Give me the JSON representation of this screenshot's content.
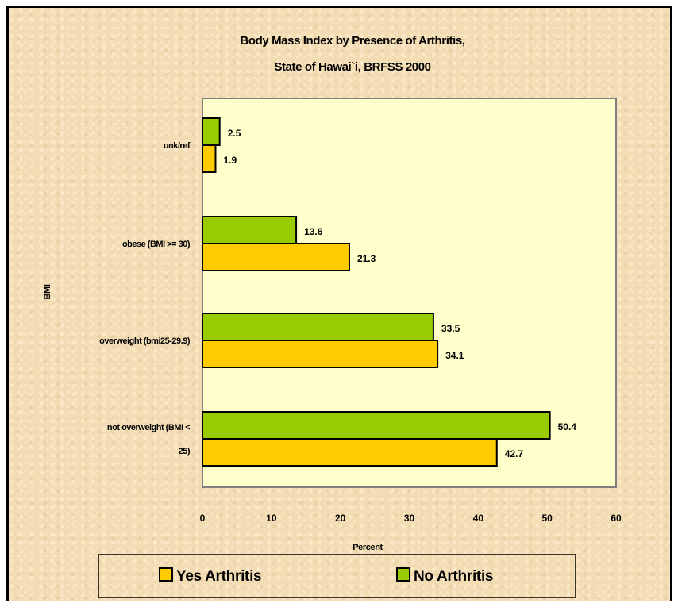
{
  "chart_data": {
    "type": "bar",
    "orientation": "horizontal",
    "title_lines": [
      "Body Mass Index by Presence of Arthritis,",
      "State of Hawai`i, BRFSS 2000"
    ],
    "xlabel": "Percent",
    "ylabel": "BMI",
    "xlim": [
      0,
      60
    ],
    "xticks": [
      0,
      10,
      20,
      30,
      40,
      50,
      60
    ],
    "grid": false,
    "legend_position": "bottom",
    "categories": [
      {
        "lines": [
          "unk/ref"
        ]
      },
      {
        "lines": [
          "obese (BMI >= 30)"
        ]
      },
      {
        "lines": [
          "overweight (bmi25-29.9)"
        ]
      },
      {
        "lines": [
          "not overweight (BMI <",
          "25)"
        ]
      }
    ],
    "series": [
      {
        "name": "Yes Arthritis",
        "color": "#ffcc00",
        "values": [
          1.9,
          21.3,
          34.1,
          42.7
        ]
      },
      {
        "name": "No Arthritis",
        "color": "#99cc00",
        "values": [
          2.5,
          13.6,
          33.5,
          50.4
        ]
      }
    ],
    "plot_background": "#ffffcc"
  }
}
